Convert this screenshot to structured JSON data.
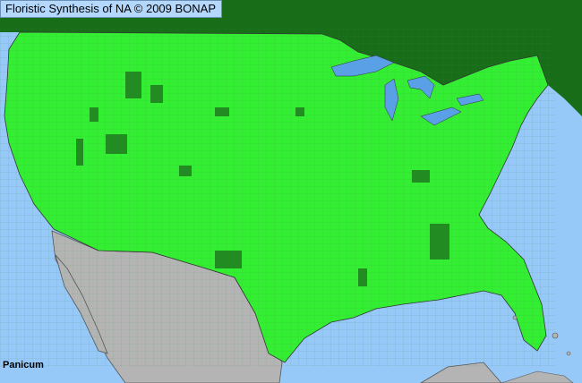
{
  "map": {
    "title": "Floristic Synthesis of NA © 2009 BONAP",
    "taxon": "Panicum",
    "colors": {
      "ocean": "#96c8f8",
      "present_county": "#33ee33",
      "state_present_not_county": "#228c22",
      "canada": "#186e18",
      "mexico": "#b4b4b4",
      "lakes": "#5aa0e6"
    }
  }
}
